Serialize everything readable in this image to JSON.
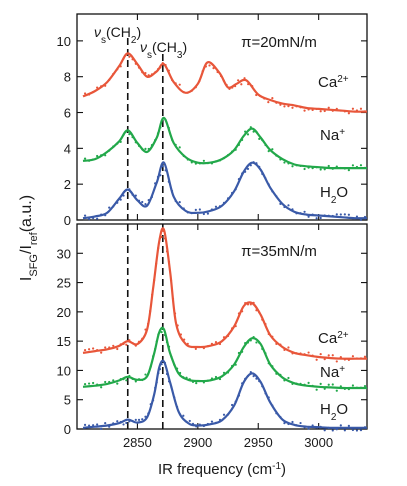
{
  "figure": {
    "ylabel_main": "I",
    "ylabel_sub1": "SFG",
    "ylabel_mid": "/I",
    "ylabel_sub2": "ref",
    "ylabel_unit": "(a.u.)",
    "xlabel_main": "IR frequency (cm",
    "xlabel_sup": "-1",
    "xlabel_close": ")"
  },
  "colors": {
    "Ca": "#e8563a",
    "Na": "#22a84a",
    "H2O": "#3a5aa8"
  },
  "chart_data": [
    {
      "type": "line",
      "panel": "top",
      "annotation": "π=20mN/m",
      "xlim": [
        2800,
        3040
      ],
      "ylim": [
        0,
        11.5
      ],
      "xticks": [
        2850,
        2900,
        2950,
        3000
      ],
      "yticks": [
        0,
        2,
        4,
        6,
        8,
        10
      ],
      "marker_lines": [
        {
          "x": 2842,
          "label_main": "ν",
          "label_sub": "s",
          "label_group": "(CH",
          "label_group_sub": "2",
          "label_close": ")"
        },
        {
          "x": 2871,
          "label_main": "ν",
          "label_sub": "s",
          "label_group": "(CH",
          "label_group_sub": "3",
          "label_close": ")"
        }
      ],
      "series": [
        {
          "name": "Ca",
          "label_main": "Ca",
          "label_sup": "2+",
          "color_key": "Ca",
          "x": [
            2805,
            2815,
            2825,
            2835,
            2842,
            2850,
            2858,
            2866,
            2872,
            2880,
            2890,
            2900,
            2908,
            2918,
            2925,
            2932,
            2940,
            2950,
            2960,
            2970,
            2980,
            2990,
            3000,
            3010,
            3020,
            3030,
            3040
          ],
          "values": [
            6.9,
            7.2,
            7.7,
            8.6,
            9.3,
            8.7,
            8.0,
            8.3,
            8.7,
            7.7,
            7.1,
            7.6,
            8.8,
            8.2,
            7.4,
            7.6,
            7.8,
            7.0,
            6.7,
            6.5,
            6.4,
            6.25,
            6.2,
            6.15,
            6.1,
            6.05,
            6.05
          ]
        },
        {
          "name": "Na",
          "label_main": "Na",
          "label_sup": "+",
          "color_key": "Na",
          "x": [
            2805,
            2815,
            2825,
            2835,
            2842,
            2850,
            2858,
            2866,
            2872,
            2880,
            2890,
            2900,
            2910,
            2920,
            2930,
            2938,
            2945,
            2952,
            2960,
            2970,
            2980,
            2990,
            3000,
            3010,
            3020,
            3030,
            3040
          ],
          "values": [
            3.3,
            3.4,
            3.8,
            4.4,
            5.0,
            4.3,
            3.8,
            4.6,
            5.7,
            4.3,
            3.5,
            3.2,
            3.2,
            3.4,
            3.9,
            4.7,
            5.1,
            4.6,
            3.9,
            3.4,
            3.1,
            3.0,
            2.95,
            2.9,
            2.9,
            2.9,
            2.9
          ]
        },
        {
          "name": "H2O",
          "label_main": "H",
          "label_sub": "2",
          "label_tail": "O",
          "color_key": "H2O",
          "x": [
            2805,
            2815,
            2825,
            2835,
            2842,
            2850,
            2858,
            2866,
            2872,
            2880,
            2890,
            2900,
            2910,
            2920,
            2930,
            2938,
            2945,
            2952,
            2960,
            2970,
            2980,
            2990,
            3000,
            3010,
            3020,
            3030,
            3040
          ],
          "values": [
            0.1,
            0.2,
            0.4,
            1.2,
            1.7,
            1.1,
            0.8,
            2.1,
            3.2,
            1.3,
            0.5,
            0.4,
            0.5,
            0.8,
            1.6,
            2.7,
            3.2,
            2.8,
            1.8,
            0.9,
            0.45,
            0.3,
            0.25,
            0.2,
            0.15,
            0.1,
            0.1
          ]
        }
      ]
    },
    {
      "type": "line",
      "panel": "bottom",
      "annotation": "π=35mN/m",
      "xlim": [
        2800,
        3040
      ],
      "ylim": [
        0,
        35
      ],
      "xticks": [
        2850,
        2900,
        2950,
        3000
      ],
      "yticks": [
        0,
        5,
        10,
        15,
        20,
        25,
        30
      ],
      "series": [
        {
          "name": "Ca",
          "label_main": "Ca",
          "label_sup": "2+",
          "color_key": "Ca",
          "x": [
            2805,
            2815,
            2825,
            2835,
            2842,
            2850,
            2858,
            2863,
            2868,
            2872,
            2877,
            2882,
            2890,
            2900,
            2910,
            2920,
            2930,
            2938,
            2945,
            2952,
            2960,
            2970,
            2980,
            2990,
            3000,
            3010,
            3020,
            3030,
            3040
          ],
          "values": [
            13.0,
            13.3,
            13.6,
            14.2,
            15.0,
            14.5,
            17.0,
            24.0,
            32.0,
            34.0,
            27.0,
            18.0,
            14.5,
            14.0,
            14.2,
            15.0,
            17.5,
            21.0,
            21.5,
            19.5,
            16.0,
            14.0,
            13.0,
            12.6,
            12.3,
            12.1,
            12.0,
            12.0,
            12.0
          ]
        },
        {
          "name": "Na",
          "label_main": "Na",
          "label_sup": "+",
          "color_key": "Na",
          "x": [
            2805,
            2815,
            2825,
            2835,
            2842,
            2850,
            2858,
            2864,
            2868,
            2872,
            2877,
            2884,
            2892,
            2900,
            2910,
            2920,
            2930,
            2938,
            2945,
            2952,
            2960,
            2970,
            2980,
            2990,
            3000,
            3010,
            3020,
            3030,
            3040
          ],
          "values": [
            7.2,
            7.4,
            7.7,
            8.3,
            8.9,
            8.4,
            9.0,
            13.0,
            16.5,
            17.0,
            13.0,
            9.5,
            8.4,
            8.2,
            8.3,
            9.0,
            11.0,
            14.0,
            15.5,
            14.5,
            11.0,
            8.8,
            7.8,
            7.4,
            7.2,
            7.1,
            7.0,
            7.0,
            7.0
          ]
        },
        {
          "name": "H2O",
          "label_main": "H",
          "label_sub": "2",
          "label_tail": "O",
          "color_key": "H2O",
          "x": [
            2805,
            2815,
            2825,
            2835,
            2842,
            2850,
            2858,
            2864,
            2868,
            2872,
            2877,
            2884,
            2892,
            2900,
            2910,
            2920,
            2930,
            2938,
            2945,
            2952,
            2960,
            2970,
            2980,
            2990,
            3000,
            3010,
            3020,
            3030,
            3040
          ],
          "values": [
            0.2,
            0.4,
            0.6,
            1.0,
            1.6,
            1.1,
            2.0,
            6.0,
            10.5,
            11.5,
            8.0,
            3.0,
            1.0,
            0.6,
            0.8,
            1.5,
            4.0,
            8.0,
            9.5,
            8.0,
            4.5,
            1.6,
            0.7,
            0.4,
            0.3,
            0.2,
            0.2,
            0.2,
            0.2
          ]
        }
      ]
    }
  ]
}
